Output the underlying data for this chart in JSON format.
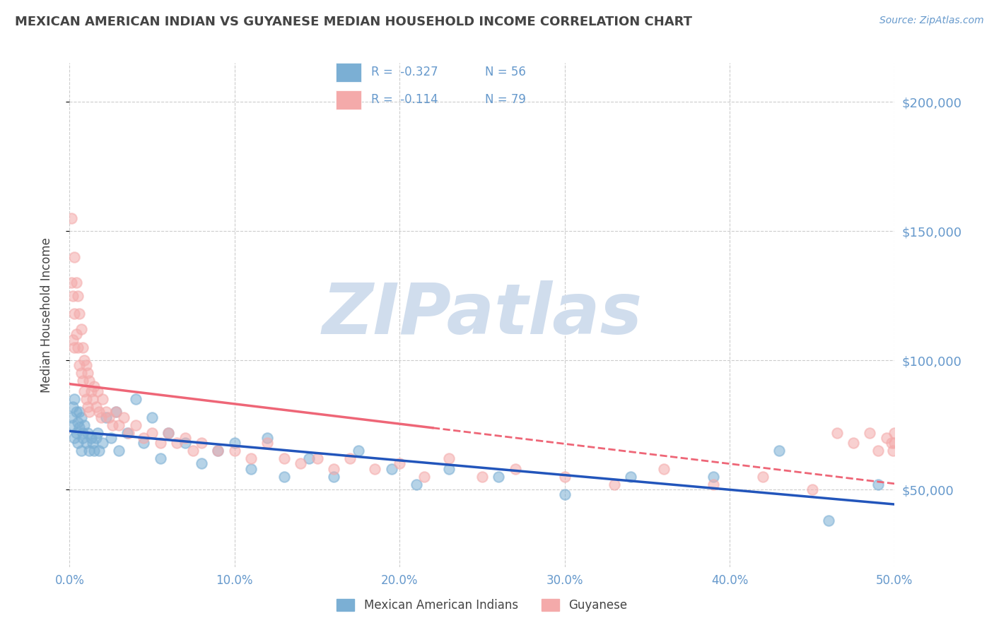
{
  "title": "MEXICAN AMERICAN INDIAN VS GUYANESE MEDIAN HOUSEHOLD INCOME CORRELATION CHART",
  "source_text": "Source: ZipAtlas.com",
  "ylabel": "Median Household Income",
  "xlim": [
    0.0,
    0.5
  ],
  "ylim": [
    20000,
    215000
  ],
  "yticks": [
    50000,
    100000,
    150000,
    200000
  ],
  "ytick_labels": [
    "$50,000",
    "$100,000",
    "$150,000",
    "$200,000"
  ],
  "xticks": [
    0.0,
    0.1,
    0.2,
    0.3,
    0.4,
    0.5
  ],
  "xtick_labels": [
    "0.0%",
    "10.0%",
    "20.0%",
    "30.0%",
    "40.0%",
    "50.0%"
  ],
  "legend_label1": "Mexican American Indians",
  "legend_label2": "Guyanese",
  "r1": -0.327,
  "n1": 56,
  "r2": -0.114,
  "n2": 79,
  "color_blue": "#7BAFD4",
  "color_pink": "#F4AAAA",
  "trend_color_blue": "#2255BB",
  "trend_color_pink": "#EE6677",
  "background_color": "#FFFFFF",
  "grid_color": "#CCCCCC",
  "title_color": "#444444",
  "axis_label_color": "#6699CC",
  "watermark_color": "#D0DDED",
  "watermark_text": "ZIPatlas",
  "blue_scatter_x": [
    0.001,
    0.002,
    0.002,
    0.003,
    0.003,
    0.004,
    0.004,
    0.005,
    0.005,
    0.006,
    0.006,
    0.007,
    0.007,
    0.008,
    0.008,
    0.009,
    0.01,
    0.011,
    0.012,
    0.013,
    0.014,
    0.015,
    0.016,
    0.017,
    0.018,
    0.02,
    0.022,
    0.025,
    0.028,
    0.03,
    0.035,
    0.04,
    0.045,
    0.05,
    0.055,
    0.06,
    0.07,
    0.08,
    0.09,
    0.1,
    0.11,
    0.12,
    0.13,
    0.145,
    0.16,
    0.175,
    0.195,
    0.21,
    0.23,
    0.26,
    0.3,
    0.34,
    0.39,
    0.43,
    0.46,
    0.49
  ],
  "blue_scatter_y": [
    78000,
    82000,
    75000,
    85000,
    70000,
    80000,
    72000,
    76000,
    68000,
    80000,
    74000,
    78000,
    65000,
    72000,
    70000,
    75000,
    68000,
    72000,
    65000,
    70000,
    68000,
    65000,
    70000,
    72000,
    65000,
    68000,
    78000,
    70000,
    80000,
    65000,
    72000,
    85000,
    68000,
    78000,
    62000,
    72000,
    68000,
    60000,
    65000,
    68000,
    58000,
    70000,
    55000,
    62000,
    55000,
    65000,
    58000,
    52000,
    58000,
    55000,
    48000,
    55000,
    55000,
    65000,
    38000,
    52000
  ],
  "pink_scatter_x": [
    0.001,
    0.001,
    0.002,
    0.002,
    0.003,
    0.003,
    0.003,
    0.004,
    0.004,
    0.005,
    0.005,
    0.006,
    0.006,
    0.007,
    0.007,
    0.008,
    0.008,
    0.009,
    0.009,
    0.01,
    0.01,
    0.011,
    0.011,
    0.012,
    0.012,
    0.013,
    0.014,
    0.015,
    0.016,
    0.017,
    0.018,
    0.019,
    0.02,
    0.022,
    0.024,
    0.026,
    0.028,
    0.03,
    0.033,
    0.036,
    0.04,
    0.045,
    0.05,
    0.055,
    0.06,
    0.065,
    0.07,
    0.075,
    0.08,
    0.09,
    0.1,
    0.11,
    0.12,
    0.13,
    0.14,
    0.15,
    0.16,
    0.17,
    0.185,
    0.2,
    0.215,
    0.23,
    0.25,
    0.27,
    0.3,
    0.33,
    0.36,
    0.39,
    0.42,
    0.45,
    0.465,
    0.475,
    0.485,
    0.49,
    0.495,
    0.498,
    0.499,
    0.5,
    0.5
  ],
  "pink_scatter_y": [
    155000,
    130000,
    125000,
    108000,
    140000,
    118000,
    105000,
    130000,
    110000,
    125000,
    105000,
    118000,
    98000,
    112000,
    95000,
    105000,
    92000,
    100000,
    88000,
    98000,
    85000,
    95000,
    82000,
    92000,
    80000,
    88000,
    85000,
    90000,
    82000,
    88000,
    80000,
    78000,
    85000,
    80000,
    78000,
    75000,
    80000,
    75000,
    78000,
    72000,
    75000,
    70000,
    72000,
    68000,
    72000,
    68000,
    70000,
    65000,
    68000,
    65000,
    65000,
    62000,
    68000,
    62000,
    60000,
    62000,
    58000,
    62000,
    58000,
    60000,
    55000,
    62000,
    55000,
    58000,
    55000,
    52000,
    58000,
    52000,
    55000,
    50000,
    72000,
    68000,
    72000,
    65000,
    70000,
    68000,
    65000,
    72000,
    68000
  ]
}
